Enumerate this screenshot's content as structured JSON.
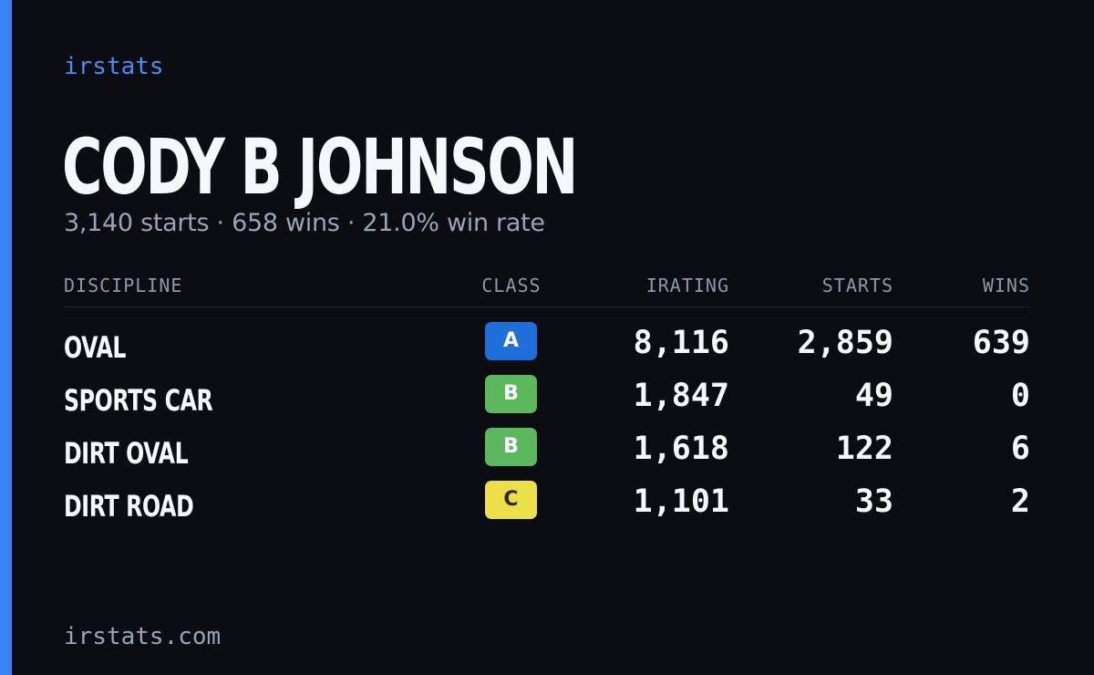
{
  "brand": "irstats",
  "driver": {
    "name": "CODY B JOHNSON",
    "summary": "3,140 starts · 658 wins · 21.0% win rate"
  },
  "table": {
    "headers": {
      "discipline": "DISCIPLINE",
      "class": "CLASS",
      "irating": "IRATING",
      "starts": "STARTS",
      "wins": "WINS"
    },
    "rows": [
      {
        "discipline": "OVAL",
        "class": "A",
        "class_color": "#1e6fd9",
        "class_text_color": "#ffffff",
        "irating": "8,116",
        "starts": "2,859",
        "wins": "639"
      },
      {
        "discipline": "SPORTS CAR",
        "class": "B",
        "class_color": "#5cb85c",
        "class_text_color": "#ffffff",
        "irating": "1,847",
        "starts": "49",
        "wins": "0"
      },
      {
        "discipline": "DIRT OVAL",
        "class": "B",
        "class_color": "#5cb85c",
        "class_text_color": "#ffffff",
        "irating": "1,618",
        "starts": "122",
        "wins": "6"
      },
      {
        "discipline": "DIRT ROAD",
        "class": "C",
        "class_color": "#ecdf48",
        "class_text_color": "#2a2a2a",
        "irating": "1,101",
        "starts": "33",
        "wins": "2"
      }
    ]
  },
  "footer": "irstats.com",
  "colors": {
    "background": "#0b0d13",
    "accent": "#3b82f6"
  }
}
